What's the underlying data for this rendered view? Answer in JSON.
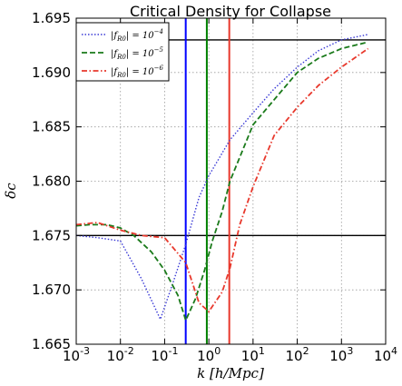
{
  "chart_data": {
    "type": "line",
    "title": "Critical Density for Collapse",
    "xlabel": "k [h/Mpc]",
    "ylabel": "δc",
    "xscale": "log",
    "xlim": [
      0.001,
      10000
    ],
    "ylim": [
      1.665,
      1.695
    ],
    "grid": true,
    "legend_position": "top-left",
    "x_ticks": [
      {
        "value": 0.001,
        "base": "10",
        "exp": "-3"
      },
      {
        "value": 0.01,
        "base": "10",
        "exp": "-2"
      },
      {
        "value": 0.1,
        "base": "10",
        "exp": "-1"
      },
      {
        "value": 1,
        "base": "10",
        "exp": "0"
      },
      {
        "value": 10,
        "base": "10",
        "exp": "1"
      },
      {
        "value": 100,
        "base": "10",
        "exp": "2"
      },
      {
        "value": 1000,
        "base": "10",
        "exp": "3"
      },
      {
        "value": 10000,
        "base": "10",
        "exp": "4"
      }
    ],
    "y_ticks": [
      {
        "value": 1.665,
        "label": "1.665"
      },
      {
        "value": 1.67,
        "label": "1.670"
      },
      {
        "value": 1.675,
        "label": "1.675"
      },
      {
        "value": 1.68,
        "label": "1.680"
      },
      {
        "value": 1.685,
        "label": "1.685"
      },
      {
        "value": 1.69,
        "label": "1.690"
      },
      {
        "value": 1.695,
        "label": "1.695"
      }
    ],
    "reference_lines": {
      "horizontal": [
        1.693,
        1.675
      ],
      "vertical": [
        {
          "x": 0.3,
          "color": "#0000ff"
        },
        {
          "x": 0.9,
          "color": "#008000"
        },
        {
          "x": 2.9,
          "color": "#e8382c"
        }
      ],
      "horizontal_color": "#000000"
    },
    "series": [
      {
        "name": "|fR0| = 10^-4",
        "legend_lhs": "|f",
        "legend_sub": "R0",
        "legend_rhs": "| = 10",
        "legend_exp": "−4",
        "color": "#3b3bd6",
        "dash": "dotted",
        "x": [
          0.001,
          0.003,
          0.01,
          0.03,
          0.08,
          0.15,
          0.3,
          0.6,
          1,
          3,
          10,
          30,
          100,
          300,
          1000,
          4000
        ],
        "y": [
          1.675,
          1.6748,
          1.6745,
          1.671,
          1.6673,
          1.6705,
          1.6742,
          1.6785,
          1.6805,
          1.6838,
          1.6863,
          1.6885,
          1.6905,
          1.692,
          1.693,
          1.6935
        ]
      },
      {
        "name": "|fR0| = 10^-5",
        "legend_lhs": "|f",
        "legend_sub": "R0",
        "legend_rhs": "| = 10",
        "legend_exp": "−5",
        "color": "#1a7a1a",
        "dash": "dashed",
        "x": [
          0.001,
          0.002,
          0.005,
          0.01,
          0.02,
          0.05,
          0.1,
          0.2,
          0.3,
          0.5,
          0.8,
          1.2,
          2,
          3,
          5,
          10,
          30,
          100,
          300,
          1000,
          4000
        ],
        "y": [
          1.6759,
          1.676,
          1.676,
          1.6757,
          1.675,
          1.6735,
          1.6718,
          1.6695,
          1.6672,
          1.6692,
          1.6718,
          1.6745,
          1.6772,
          1.68,
          1.6822,
          1.6852,
          1.6875,
          1.69,
          1.6913,
          1.6922,
          1.6928
        ]
      },
      {
        "name": "|fR0| = 10^-6",
        "legend_lhs": "|f",
        "legend_sub": "R0",
        "legend_rhs": "| = 10",
        "legend_exp": "−6",
        "color": "#e8382c",
        "dash": "dashdot",
        "x": [
          0.001,
          0.003,
          0.01,
          0.03,
          0.1,
          0.3,
          0.6,
          1,
          2,
          3,
          5,
          10,
          30,
          100,
          300,
          1000,
          4000
        ],
        "y": [
          1.676,
          1.6762,
          1.6755,
          1.675,
          1.6748,
          1.6725,
          1.6688,
          1.668,
          1.6698,
          1.672,
          1.676,
          1.6795,
          1.6842,
          1.6868,
          1.6888,
          1.6905,
          1.6922
        ]
      }
    ]
  }
}
